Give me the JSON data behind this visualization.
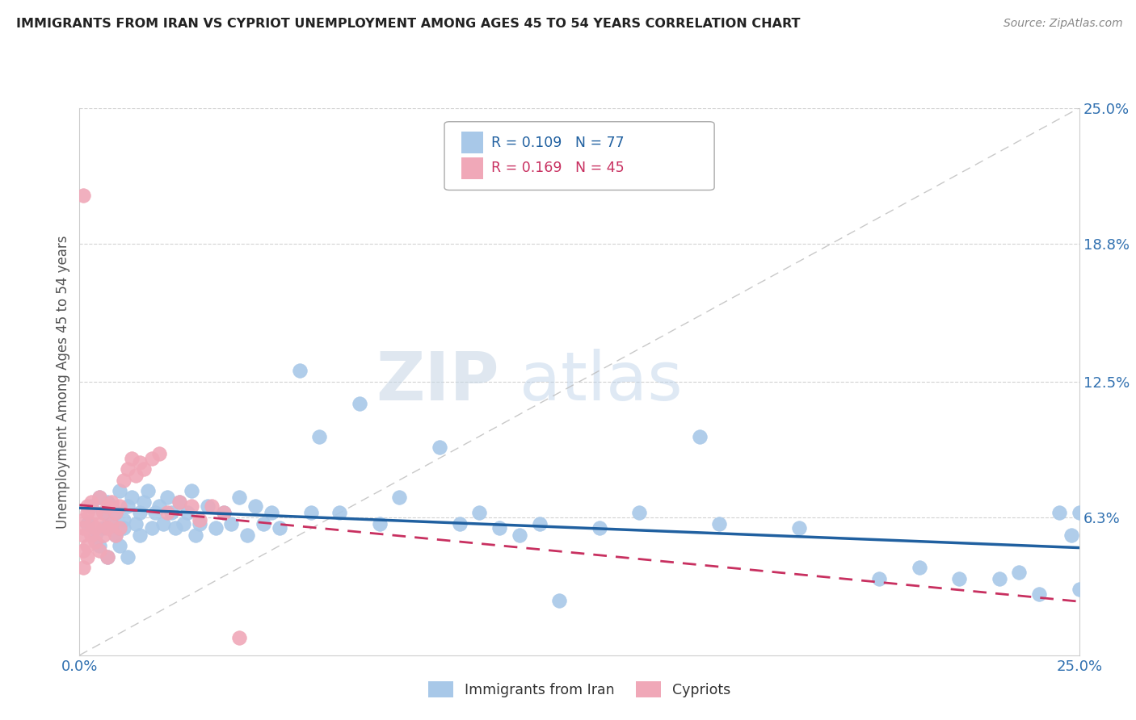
{
  "title": "IMMIGRANTS FROM IRAN VS CYPRIOT UNEMPLOYMENT AMONG AGES 45 TO 54 YEARS CORRELATION CHART",
  "source": "Source: ZipAtlas.com",
  "ylabel": "Unemployment Among Ages 45 to 54 years",
  "xlim": [
    0.0,
    0.25
  ],
  "ylim": [
    0.0,
    0.25
  ],
  "xtick_labels": [
    "0.0%",
    "25.0%"
  ],
  "ytick_labels": [
    "6.3%",
    "12.5%",
    "18.8%",
    "25.0%"
  ],
  "ytick_vals": [
    0.063,
    0.125,
    0.188,
    0.25
  ],
  "grid_color": "#c8c8c8",
  "background_color": "#ffffff",
  "blue_color": "#a8c8e8",
  "pink_color": "#f0a8b8",
  "blue_line_color": "#2060a0",
  "pink_line_color": "#c83060",
  "legend_R1": "0.109",
  "legend_N1": "77",
  "legend_R2": "0.169",
  "legend_N2": "45",
  "watermark_zip": "ZIP",
  "watermark_atlas": "atlas",
  "blue_x": [
    0.002,
    0.003,
    0.004,
    0.005,
    0.005,
    0.006,
    0.006,
    0.007,
    0.007,
    0.008,
    0.008,
    0.009,
    0.009,
    0.01,
    0.01,
    0.011,
    0.011,
    0.012,
    0.012,
    0.013,
    0.014,
    0.015,
    0.015,
    0.016,
    0.017,
    0.018,
    0.019,
    0.02,
    0.021,
    0.022,
    0.023,
    0.024,
    0.025,
    0.026,
    0.027,
    0.028,
    0.029,
    0.03,
    0.032,
    0.034,
    0.036,
    0.038,
    0.04,
    0.042,
    0.044,
    0.046,
    0.048,
    0.05,
    0.055,
    0.058,
    0.06,
    0.065,
    0.07,
    0.075,
    0.08,
    0.09,
    0.095,
    0.1,
    0.105,
    0.11,
    0.115,
    0.12,
    0.13,
    0.14,
    0.155,
    0.16,
    0.18,
    0.2,
    0.21,
    0.22,
    0.23,
    0.235,
    0.24,
    0.245,
    0.248,
    0.25,
    0.25
  ],
  "blue_y": [
    0.06,
    0.068,
    0.055,
    0.072,
    0.05,
    0.065,
    0.058,
    0.07,
    0.045,
    0.068,
    0.06,
    0.055,
    0.065,
    0.075,
    0.05,
    0.062,
    0.058,
    0.068,
    0.045,
    0.072,
    0.06,
    0.065,
    0.055,
    0.07,
    0.075,
    0.058,
    0.065,
    0.068,
    0.06,
    0.072,
    0.065,
    0.058,
    0.07,
    0.06,
    0.065,
    0.075,
    0.055,
    0.06,
    0.068,
    0.058,
    0.065,
    0.06,
    0.072,
    0.055,
    0.068,
    0.06,
    0.065,
    0.058,
    0.13,
    0.065,
    0.1,
    0.065,
    0.115,
    0.06,
    0.072,
    0.095,
    0.06,
    0.065,
    0.058,
    0.055,
    0.06,
    0.025,
    0.058,
    0.065,
    0.1,
    0.06,
    0.058,
    0.035,
    0.04,
    0.035,
    0.035,
    0.038,
    0.028,
    0.065,
    0.055,
    0.065,
    0.03
  ],
  "pink_x": [
    0.001,
    0.001,
    0.001,
    0.001,
    0.001,
    0.002,
    0.002,
    0.002,
    0.002,
    0.003,
    0.003,
    0.003,
    0.004,
    0.004,
    0.004,
    0.005,
    0.005,
    0.005,
    0.006,
    0.006,
    0.007,
    0.007,
    0.007,
    0.008,
    0.008,
    0.009,
    0.009,
    0.01,
    0.01,
    0.011,
    0.012,
    0.013,
    0.014,
    0.015,
    0.016,
    0.018,
    0.02,
    0.022,
    0.025,
    0.028,
    0.03,
    0.033,
    0.036,
    0.04,
    0.001
  ],
  "pink_y": [
    0.055,
    0.048,
    0.062,
    0.04,
    0.058,
    0.065,
    0.05,
    0.068,
    0.045,
    0.055,
    0.07,
    0.06,
    0.058,
    0.065,
    0.052,
    0.072,
    0.06,
    0.048,
    0.065,
    0.055,
    0.068,
    0.058,
    0.045,
    0.07,
    0.06,
    0.065,
    0.055,
    0.068,
    0.058,
    0.08,
    0.085,
    0.09,
    0.082,
    0.088,
    0.085,
    0.09,
    0.092,
    0.065,
    0.07,
    0.068,
    0.062,
    0.068,
    0.065,
    0.008,
    0.21
  ]
}
